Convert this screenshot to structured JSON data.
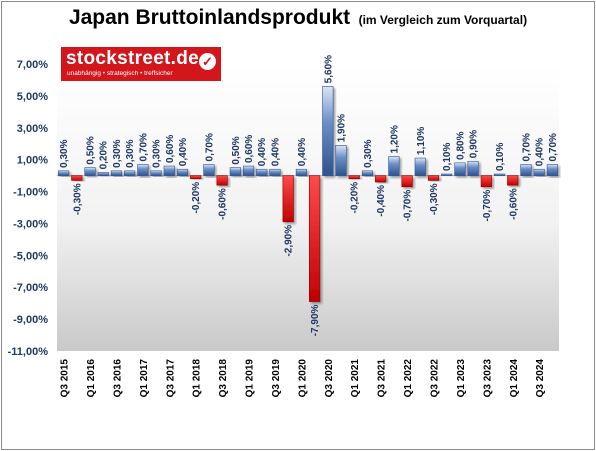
{
  "header": {
    "title": "Japan Bruttoinlandsprodukt",
    "subtitle": "(im Vergleich zum Vorquartal)"
  },
  "logo": {
    "name": "stockstreet.de",
    "tagline": "unabhängig • strategisch • treffsicher"
  },
  "colors": {
    "positive": "#4472c4",
    "negative": "#e00000",
    "axis_text": "#1f3864",
    "logo_background": "#d3161c"
  },
  "chart_data": {
    "type": "bar",
    "title": "Japan Bruttoinlandsprodukt",
    "subtitle": "(im Vergleich zum Vorquartal)",
    "ylim": [
      -11,
      7
    ],
    "yticks": [
      7,
      5,
      3,
      1,
      -1,
      -3,
      -5,
      -7,
      -9,
      -11
    ],
    "ytick_labels": [
      "7,00%",
      "5,00%",
      "3,00%",
      "1,00%",
      "-1,00%",
      "-3,00%",
      "-5,00%",
      "-7,00%",
      "-9,00%",
      "-11,00%"
    ],
    "grid": false,
    "legend": "none",
    "categories": [
      "Q3 2015",
      "Q4 2015",
      "Q1 2016",
      "Q2 2016",
      "Q3 2016",
      "Q4 2016",
      "Q1 2017",
      "Q2 2017",
      "Q3 2017",
      "Q4 2017",
      "Q1 2018",
      "Q2 2018",
      "Q3 2018",
      "Q4 2018",
      "Q1 2019",
      "Q2 2019",
      "Q3 2019",
      "Q4 2019",
      "Q1 2020",
      "Q2 2020",
      "Q3 2020",
      "Q4 2020",
      "Q1 2021",
      "Q2 2021",
      "Q3 2021",
      "Q4 2021",
      "Q1 2022",
      "Q2 2022",
      "Q3 2022",
      "Q4 2022",
      "Q1 2023",
      "Q2 2023",
      "Q3 2023",
      "Q4 2023",
      "Q1 2024",
      "Q2 2024",
      "Q3 2024",
      "Q4 2024"
    ],
    "x_tick_labels": [
      "Q3 2015",
      "",
      "Q1 2016",
      "",
      "Q3 2016",
      "",
      "Q1 2017",
      "",
      "Q3 2017",
      "",
      "Q1 2018",
      "",
      "Q3 2018",
      "",
      "Q1 2019",
      "",
      "Q3 2019",
      "",
      "Q1 2020",
      "",
      "Q3 2020",
      "",
      "Q1 2021",
      "",
      "Q3 2021",
      "",
      "Q1 2022",
      "",
      "Q3 2022",
      "",
      "Q1 2023",
      "",
      "Q3 2023",
      "",
      "Q1 2024",
      "",
      "Q3 2024",
      ""
    ],
    "values": [
      0.3,
      -0.3,
      0.5,
      0.2,
      0.3,
      0.3,
      0.7,
      0.3,
      0.6,
      0.4,
      -0.2,
      0.7,
      -0.6,
      0.5,
      0.6,
      0.4,
      0.4,
      -2.9,
      0.4,
      -7.9,
      5.6,
      1.9,
      -0.2,
      0.3,
      -0.4,
      1.2,
      -0.7,
      1.1,
      -0.3,
      0.1,
      0.8,
      0.9,
      -0.7,
      0.1,
      -0.6,
      0.7,
      0.4,
      0.7
    ],
    "data_labels": [
      "0,30%",
      "-0,30%",
      "0,50%",
      "0,20%",
      "0,30%",
      "0,30%",
      "0,70%",
      "0,30%",
      "0,60%",
      "0,40%",
      "-0,20%",
      "0,70%",
      "-0,60%",
      "0,50%",
      "0,60%",
      "0,40%",
      "0,40%",
      "-2,90%",
      "0,40%",
      "-7,90%",
      "5,60%",
      "1,90%",
      "-0,20%",
      "0,30%",
      "-0,40%",
      "1,20%",
      "-0,70%",
      "1,10%",
      "-0,30%",
      "0,10%",
      "0,80%",
      "0,90%",
      "-0,70%",
      "0,10%",
      "-0,60%",
      "0,70%",
      "0,40%",
      "0,70%"
    ]
  }
}
